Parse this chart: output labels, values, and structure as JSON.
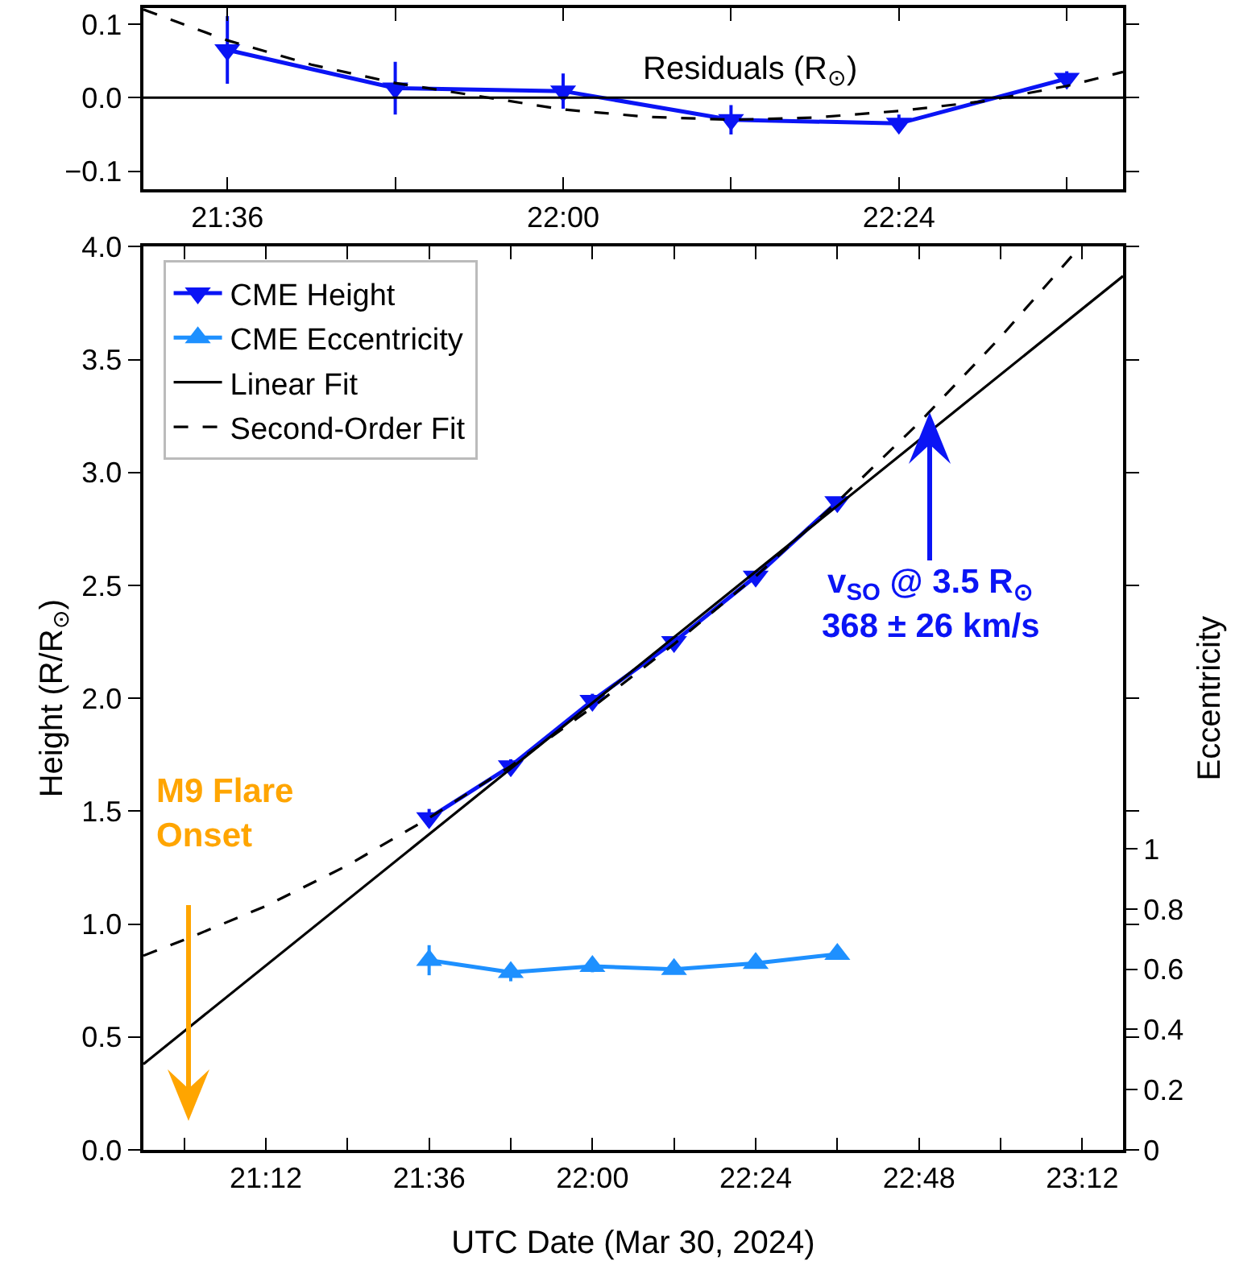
{
  "chart_data": [
    {
      "type": "line",
      "annotations": [
        "Residuals (R$_{⊙}$)"
      ],
      "xlim": [
        21.5,
        22.667
      ],
      "xticks": [
        {
          "value": 21.6,
          "label": "21:36"
        },
        {
          "value": 21.8,
          "label": null
        },
        {
          "value": 22.0,
          "label": "22:00"
        },
        {
          "value": 22.2,
          "label": null
        },
        {
          "value": 22.4,
          "label": "22:24"
        },
        {
          "value": 22.6,
          "label": null
        }
      ],
      "ylim": [
        -0.125,
        0.122
      ],
      "yticks": [
        0.1,
        {
          "value": 0,
          "label": "0.0"
        },
        {
          "value": -0.1,
          "label": "−0.1"
        }
      ],
      "ref_lines": [
        {
          "axis": "y",
          "value": 0,
          "color": "#000000"
        }
      ],
      "series": [
        {
          "color": "#0a14f5",
          "marker": "triangle-down",
          "x": [
            21.6,
            21.8,
            22.0,
            22.2,
            22.4,
            22.6
          ],
          "values": [
            0.065,
            0.013,
            0.009,
            -0.03,
            -0.035,
            0.026
          ],
          "errors": [
            0.046,
            0.036,
            0.024,
            0.02,
            0.012,
            0.01
          ]
        },
        {
          "type": "line",
          "color": "#000000",
          "line_style": "dashed",
          "marker": "none",
          "x": [
            21.5,
            21.6,
            21.7,
            21.8,
            21.9,
            22.0,
            22.1,
            22.2,
            22.3,
            22.4,
            22.5,
            22.6,
            22.667
          ],
          "values": [
            0.12,
            0.078,
            0.045,
            0.02,
            0.002,
            -0.016,
            -0.026,
            -0.03,
            -0.027,
            -0.018,
            -0.005,
            0.016,
            0.035
          ]
        }
      ],
      "grid": false,
      "legend": false
    },
    {
      "type": "line",
      "xlabel": "UTC Date (Mar 30, 2024)",
      "ylabel": "Height (R/R$_{⊙}$)",
      "y2label": "Eccentricity",
      "xlim": [
        20.9,
        23.3
      ],
      "xticks": [
        {
          "value": 21.0,
          "label": null
        },
        {
          "value": 21.2,
          "label": "21:12"
        },
        {
          "value": 21.4,
          "label": null
        },
        {
          "value": 21.6,
          "label": "21:36"
        },
        {
          "value": 21.8,
          "label": null
        },
        {
          "value": 22.0,
          "label": "22:00"
        },
        {
          "value": 22.2,
          "label": null
        },
        {
          "value": 22.4,
          "label": "22:24"
        },
        {
          "value": 22.6,
          "label": null
        },
        {
          "value": 22.8,
          "label": "22:48"
        },
        {
          "value": 23.0,
          "label": null
        },
        {
          "value": 23.2,
          "label": "23:12"
        }
      ],
      "ylim": [
        0,
        4
      ],
      "yticks": [
        {
          "value": 0,
          "label": "0.0"
        },
        0.5,
        {
          "value": 1,
          "label": "1.0"
        },
        1.5,
        {
          "value": 2,
          "label": "2.0"
        },
        2.5,
        {
          "value": 3,
          "label": "3.0"
        },
        3.5,
        {
          "value": 4,
          "label": "4.0"
        }
      ],
      "y2lim": [
        0,
        3
      ],
      "y2ticks": [
        0,
        0.2,
        0.4,
        0.6,
        0.8,
        1
      ],
      "annotations": [
        "M9 Flare\nOnset",
        "v$_{SO}$ @ 3.5 R$_{⊙}$\n368 ± 26 km/s"
      ],
      "series": [
        {
          "name": "CME Height",
          "color": "#0a14f5",
          "marker": "triangle-down",
          "x": [
            21.6,
            21.8,
            22.0,
            22.2,
            22.4,
            22.6
          ],
          "values": [
            1.47,
            1.7,
            1.99,
            2.25,
            2.54,
            2.87
          ],
          "errors": [
            0.04,
            0.03,
            0.03,
            0.02,
            0.02,
            0.02
          ]
        },
        {
          "name": "CME Eccentricity",
          "color": "#1e90ff",
          "marker": "triangle",
          "axis": "y2",
          "x": [
            21.6,
            21.8,
            22.0,
            22.2,
            22.4,
            22.6
          ],
          "values": [
            0.63,
            0.59,
            0.61,
            0.6,
            0.62,
            0.65
          ],
          "errors": [
            0.05,
            0.03,
            0.02,
            0.01,
            0.01,
            0.01
          ]
        },
        {
          "name": "Linear Fit",
          "type": "line",
          "color": "#000000",
          "line_style": "solid",
          "marker": "none",
          "x": [
            20.9,
            23.3
          ],
          "values": [
            0.38,
            3.87
          ]
        },
        {
          "name": "Second-Order Fit",
          "type": "line",
          "color": "#000000",
          "line_style": "dashed",
          "marker": "none",
          "x": [
            20.9,
            21.0,
            21.2,
            21.4,
            21.6,
            21.8,
            22.0,
            22.2,
            22.4,
            22.6,
            22.8,
            23.0,
            23.19
          ],
          "values": [
            0.86,
            0.93,
            1.08,
            1.26,
            1.47,
            1.7,
            1.96,
            2.24,
            2.54,
            2.87,
            3.22,
            3.6,
            3.99
          ]
        }
      ],
      "grid": false,
      "legend": "top left"
    }
  ]
}
